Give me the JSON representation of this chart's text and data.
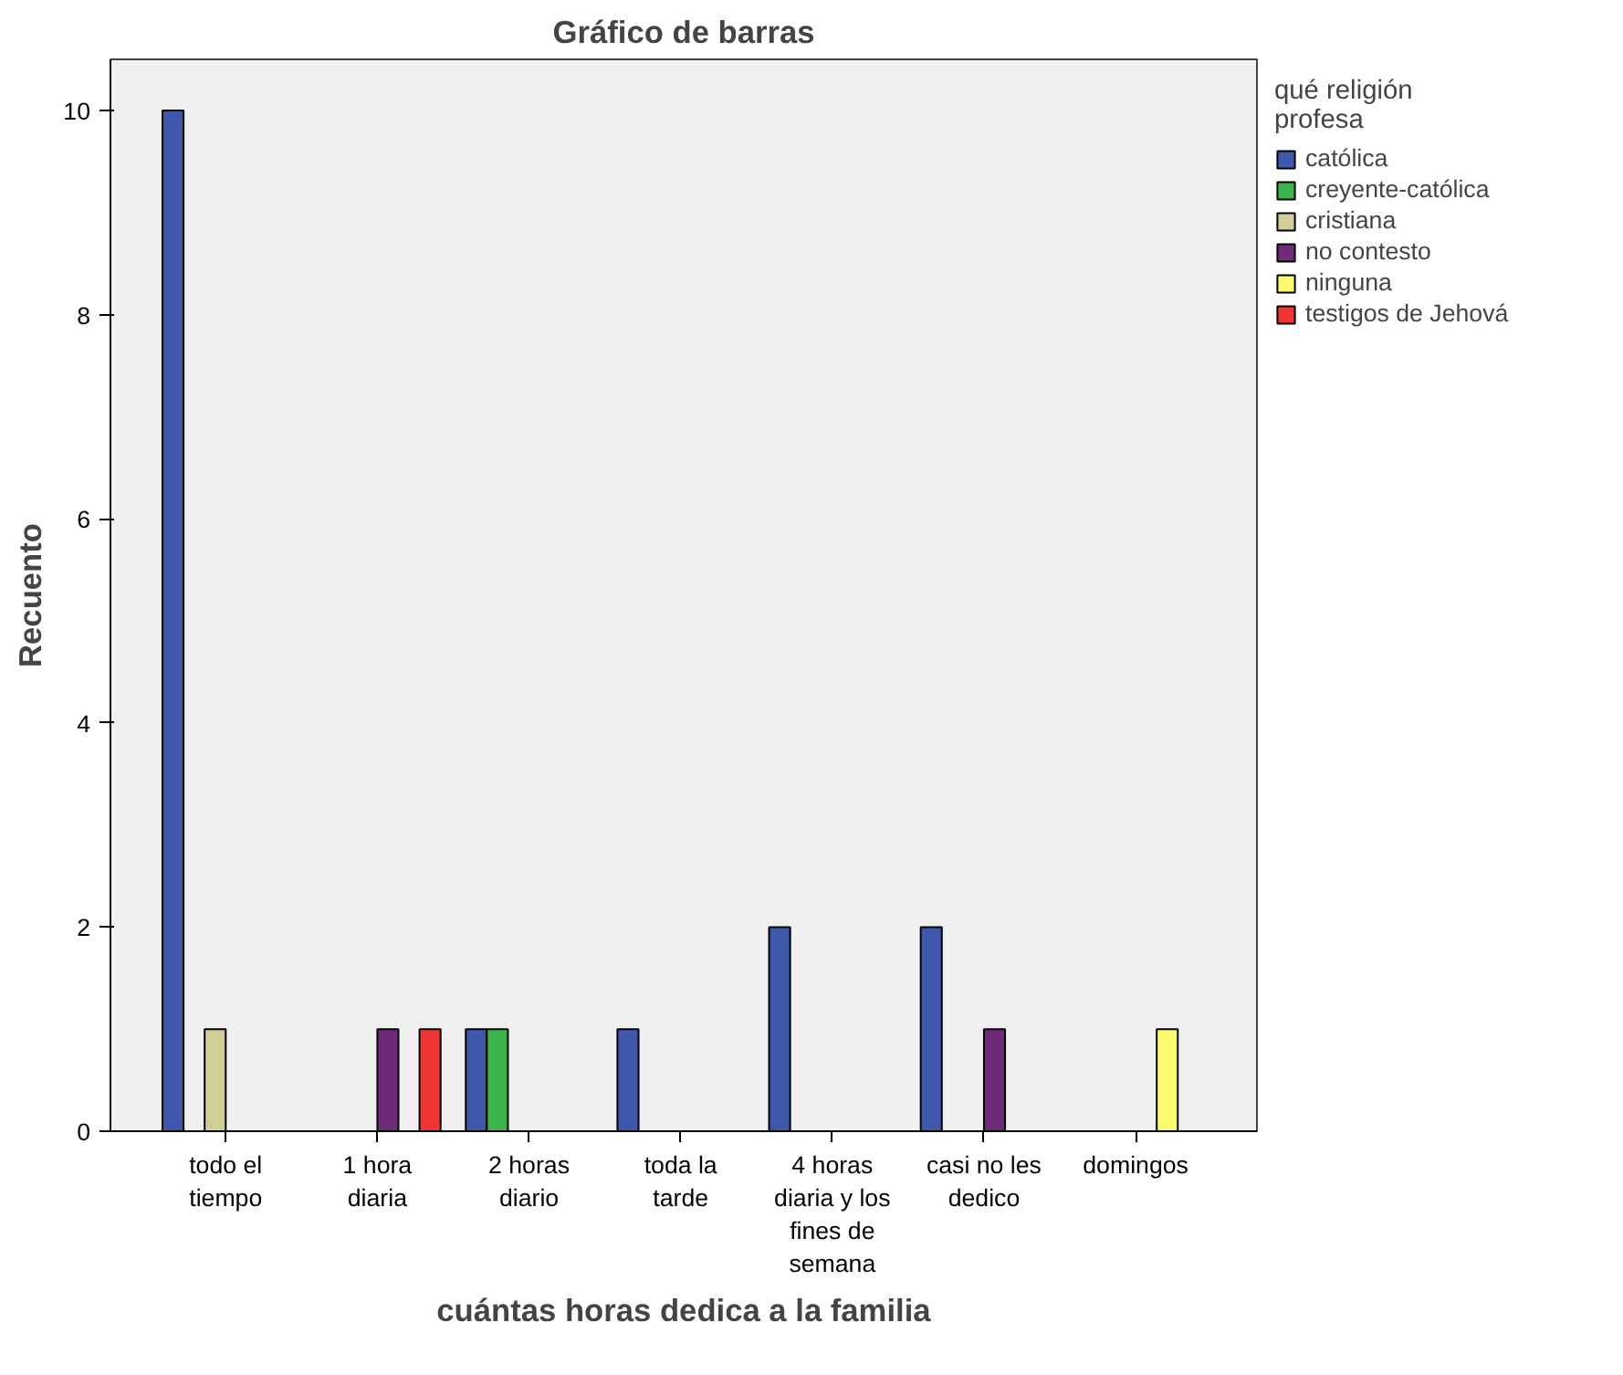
{
  "chart_data": {
    "type": "bar",
    "title": "Gráfico de barras",
    "xlabel": "cuántas horas dedica a la familia",
    "ylabel": "Recuento",
    "legend_title": "qué religión profesa",
    "categories": [
      "todo el tiempo",
      "1 hora diaria",
      "2 horas diario",
      "toda la tarde",
      "4 horas diaria y los fines de semana",
      "casi no les dedico",
      "domingos"
    ],
    "series": [
      {
        "name": "católica",
        "color": "#3e58ac",
        "values": [
          10,
          null,
          1,
          1,
          2,
          2,
          null
        ]
      },
      {
        "name": "creyente-católica",
        "color": "#3ab54a",
        "values": [
          null,
          null,
          1,
          null,
          null,
          null,
          null
        ]
      },
      {
        "name": "cristiana",
        "color": "#d3ce97",
        "values": [
          1,
          null,
          null,
          null,
          null,
          null,
          null
        ]
      },
      {
        "name": "no contesto",
        "color": "#6f2b7a",
        "values": [
          null,
          1,
          null,
          null,
          null,
          1,
          null
        ]
      },
      {
        "name": "ninguna",
        "color": "#fafa6e",
        "values": [
          null,
          null,
          null,
          null,
          null,
          null,
          1
        ]
      },
      {
        "name": "testigos de Jehová",
        "color": "#ef3434",
        "values": [
          null,
          1,
          null,
          null,
          null,
          null,
          null
        ]
      }
    ],
    "ylim": [
      0,
      10.5
    ],
    "yticks": [
      0,
      2,
      4,
      6,
      8,
      10
    ],
    "grid": false,
    "legend": "right"
  }
}
